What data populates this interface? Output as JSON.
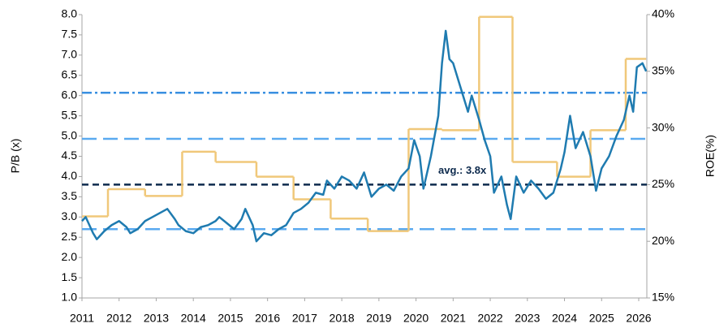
{
  "chart_data": {
    "type": "line",
    "y_axis_label": "P/B (x)",
    "y2_axis_label": "ROE(%)",
    "xlim": [
      2011,
      2026.2
    ],
    "xticks": [
      2011,
      2012,
      2013,
      2014,
      2015,
      2016,
      2017,
      2018,
      2019,
      2020,
      2021,
      2022,
      2023,
      2024,
      2025,
      2026
    ],
    "ylim": [
      1,
      8
    ],
    "yticks": [
      {
        "value": 1,
        "label": "1.0"
      },
      {
        "value": 1.5,
        "label": "1.5"
      },
      {
        "value": 2,
        "label": "2.0"
      },
      {
        "value": 2.5,
        "label": "2.5"
      },
      {
        "value": 3,
        "label": "3.0"
      },
      {
        "value": 3.5,
        "label": "3.5"
      },
      {
        "value": 4,
        "label": "4.0"
      },
      {
        "value": 4.5,
        "label": "4.5"
      },
      {
        "value": 5,
        "label": "5.0"
      },
      {
        "value": 5.5,
        "label": "5.5"
      },
      {
        "value": 6,
        "label": "6.0"
      },
      {
        "value": 6.5,
        "label": "6.5"
      },
      {
        "value": 7,
        "label": "7.0"
      },
      {
        "value": 7.5,
        "label": "7.5"
      },
      {
        "value": 8,
        "label": "8.0"
      }
    ],
    "y2lim": [
      15,
      40
    ],
    "y2ticks": [
      {
        "value": 15,
        "label": "15%"
      },
      {
        "value": 20,
        "label": "20%"
      },
      {
        "value": 25,
        "label": "25%"
      },
      {
        "value": 30,
        "label": "30%"
      },
      {
        "value": 35,
        "label": "35%"
      },
      {
        "value": 40,
        "label": "40%"
      }
    ],
    "series": [
      {
        "color": "#1f7bb0",
        "style": "line",
        "x": [
          2011.0,
          2011.1,
          2011.3,
          2011.4,
          2011.6,
          2011.8,
          2012.0,
          2012.2,
          2012.3,
          2012.5,
          2012.7,
          2012.9,
          2013.1,
          2013.3,
          2013.5,
          2013.6,
          2013.8,
          2014.0,
          2014.2,
          2014.4,
          2014.6,
          2014.7,
          2014.9,
          2015.1,
          2015.3,
          2015.4,
          2015.6,
          2015.7,
          2015.9,
          2016.1,
          2016.3,
          2016.5,
          2016.7,
          2016.9,
          2017.1,
          2017.3,
          2017.5,
          2017.6,
          2017.8,
          2018.0,
          2018.2,
          2018.4,
          2018.6,
          2018.8,
          2019.0,
          2019.2,
          2019.4,
          2019.6,
          2019.8,
          2019.95,
          2020.1,
          2020.2,
          2020.4,
          2020.6,
          2020.7,
          2020.8,
          2020.9,
          2021.0,
          2021.2,
          2021.4,
          2021.5,
          2021.7,
          2021.85,
          2022.0,
          2022.1,
          2022.3,
          2022.45,
          2022.55,
          2022.7,
          2022.9,
          2023.1,
          2023.3,
          2023.5,
          2023.7,
          2023.9,
          2024.0,
          2024.15,
          2024.3,
          2024.5,
          2024.7,
          2024.85,
          2025.0,
          2025.2,
          2025.4,
          2025.6,
          2025.75,
          2025.85,
          2025.95,
          2026.1,
          2026.2
        ],
        "values": [
          2.9,
          3.0,
          2.6,
          2.45,
          2.65,
          2.8,
          2.9,
          2.75,
          2.6,
          2.7,
          2.9,
          3.0,
          3.1,
          3.2,
          2.95,
          2.8,
          2.65,
          2.6,
          2.75,
          2.8,
          2.9,
          3.0,
          2.85,
          2.7,
          2.95,
          3.2,
          2.8,
          2.4,
          2.6,
          2.55,
          2.7,
          2.8,
          3.1,
          3.2,
          3.35,
          3.6,
          3.55,
          3.9,
          3.7,
          4.0,
          3.9,
          3.7,
          4.1,
          3.5,
          3.7,
          3.8,
          3.65,
          4.0,
          4.2,
          4.9,
          4.5,
          3.7,
          4.5,
          5.5,
          6.8,
          7.6,
          6.9,
          6.8,
          6.2,
          5.6,
          6.0,
          5.4,
          4.9,
          4.5,
          3.6,
          4.0,
          3.3,
          2.95,
          4.0,
          3.6,
          3.9,
          3.7,
          3.45,
          3.6,
          4.2,
          4.6,
          5.5,
          4.7,
          5.1,
          4.5,
          3.65,
          4.2,
          4.5,
          5.0,
          5.4,
          6.0,
          5.6,
          6.7,
          6.8,
          6.6
        ]
      },
      {
        "color": "#f0c87a",
        "style": "step",
        "axis": "y2",
        "x": [
          2011.0,
          2011.7,
          2012.7,
          2013.7,
          2014.6,
          2015.7,
          2016.7,
          2017.7,
          2018.7,
          2019.8,
          2020.7,
          2021.7,
          2022.6,
          2023.8,
          2024.7,
          2025.65
        ],
        "values": [
          22.2,
          24.6,
          24.0,
          27.9,
          27.0,
          25.7,
          23.7,
          22.0,
          20.9,
          29.9,
          29.8,
          39.8,
          27.0,
          25.7,
          29.8,
          36.1
        ]
      }
    ],
    "reference_lines": [
      {
        "value": 3.8,
        "color": "#0d2a4d",
        "dash": "dashed",
        "label": "avg.: 3.8x"
      },
      {
        "value": 4.93,
        "color": "#5aaaf0",
        "dash": "long-dashed"
      },
      {
        "value": 2.7,
        "color": "#5aaaf0",
        "dash": "long-dashed"
      },
      {
        "value": 6.07,
        "color": "#3a8fe0",
        "dash": "dash-dot"
      }
    ]
  }
}
